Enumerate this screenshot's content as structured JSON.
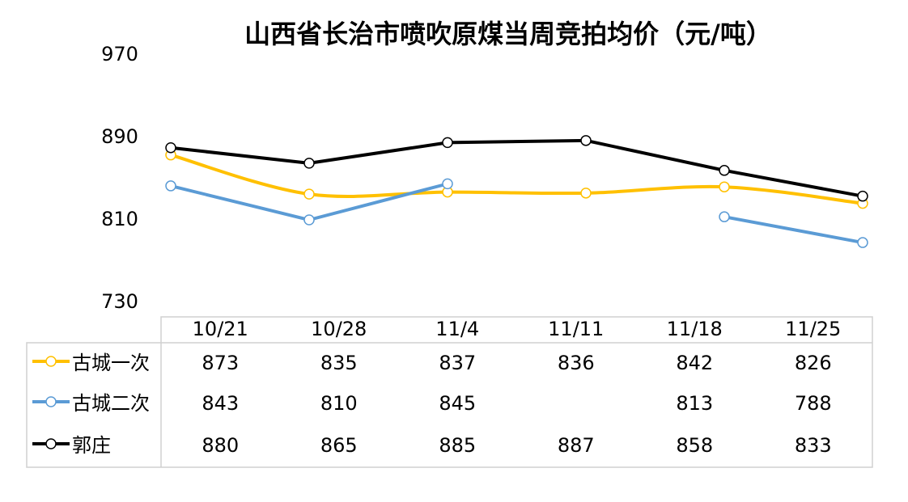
{
  "chart_data": {
    "type": "line",
    "title": "山西省长治市喷吹原煤当周竞拍均价（元/吨）",
    "categories": [
      "10/21",
      "10/28",
      "11/4",
      "11/11",
      "11/18",
      "11/25"
    ],
    "series": [
      {
        "name": "古城一次",
        "color": "#FFC000",
        "smooth": true,
        "values": [
          873,
          835,
          837,
          836,
          842,
          826
        ]
      },
      {
        "name": "古城二次",
        "color": "#5B9BD5",
        "smooth": false,
        "values": [
          843,
          810,
          845,
          null,
          813,
          788
        ]
      },
      {
        "name": "郭庄",
        "color": "#000000",
        "smooth": false,
        "values": [
          880,
          865,
          885,
          887,
          858,
          833
        ]
      }
    ],
    "ylim": [
      730,
      970
    ],
    "yticks": [
      730,
      810,
      890,
      970
    ],
    "grid": false
  }
}
